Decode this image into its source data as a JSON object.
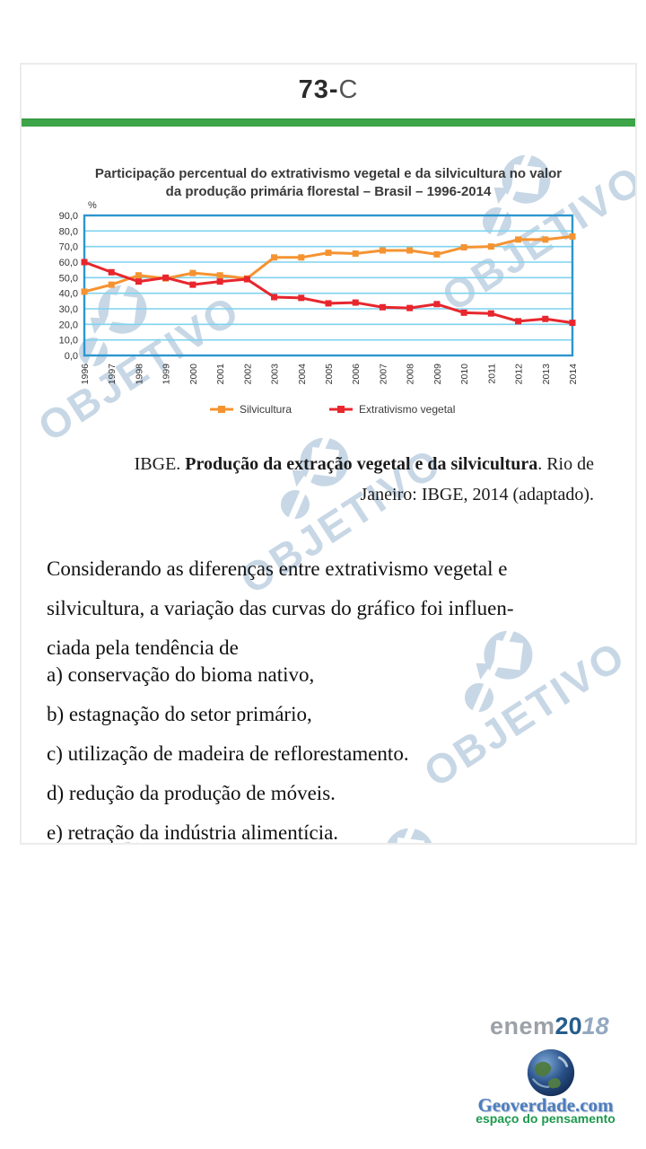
{
  "header": {
    "number": "73-",
    "letter": "C"
  },
  "chart": {
    "title_line1": "Participação percentual do extrativismo vegetal e da silvicultura no valor",
    "title_line2": "da produção primária florestal – Brasil – 1996-2014"
  },
  "chart_data": {
    "type": "line",
    "title": "Participação percentual do extrativismo vegetal e da silvicultura no valor da produção primária florestal – Brasil – 1996-2014",
    "x_labels": [
      "1996",
      "1997",
      "1998",
      "1999",
      "2000",
      "2001",
      "2002",
      "2003",
      "2004",
      "2005",
      "2006",
      "2007",
      "2008",
      "2009",
      "2010",
      "2011",
      "2012",
      "2013",
      "2014"
    ],
    "y_tick_labels": [
      "0,0",
      "10,0",
      "20,0",
      "30,0",
      "40,0",
      "50,0",
      "60,0",
      "70,0",
      "80,0",
      "90,0"
    ],
    "y_axis_unit": "%",
    "ylim": [
      0,
      90
    ],
    "grid": true,
    "legend_position": "bottom",
    "colors": {
      "grid": "#7fd3ef",
      "border": "#2d96cf"
    },
    "series": [
      {
        "name": "Silvicultura",
        "color": "#F59331",
        "values": [
          41,
          45.5,
          51.5,
          49.5,
          53,
          51.5,
          49.5,
          63,
          63,
          66,
          65.5,
          67.5,
          67.5,
          65,
          69.5,
          70,
          74.5,
          74.5,
          76.5
        ]
      },
      {
        "name": "Extrativismo vegetal",
        "color": "#E8262D",
        "values": [
          60,
          53.5,
          47.5,
          50,
          45.5,
          47.5,
          49,
          37.5,
          37,
          33.5,
          34,
          31,
          30.5,
          33,
          27.5,
          27,
          22,
          23.5,
          21
        ]
      }
    ]
  },
  "citation": {
    "prefix": "IBGE. ",
    "bold": "Produção da extração vegetal e da silvicultura",
    "suffix": ". Rio de",
    "line2": "Janeiro: IBGE, 2014 (adaptado)."
  },
  "question": {
    "lines": [
      "Considerando as diferenças entre extrativismo vegetal e",
      "silvicultura, a variação das curvas do gráfico foi influen-",
      "ciada pela tendência de"
    ]
  },
  "options": [
    {
      "label": "a)",
      "text": "conservação do bioma nativo,"
    },
    {
      "label": "b)",
      "text": "estagnação do setor primário,"
    },
    {
      "label": "c)",
      "text": "utilização de madeira de reflorestamento."
    },
    {
      "label": "d)",
      "text": "redução da produção de móveis."
    },
    {
      "label": "e)",
      "text": "retração da indústria alimentícia."
    }
  ],
  "watermark": {
    "text": "OBJETIVO"
  },
  "footer": {
    "brand": "enem",
    "year_bold": "20",
    "year_light": "18",
    "site": "Geoverdade.com",
    "tagline": "espaço do pensamento"
  }
}
